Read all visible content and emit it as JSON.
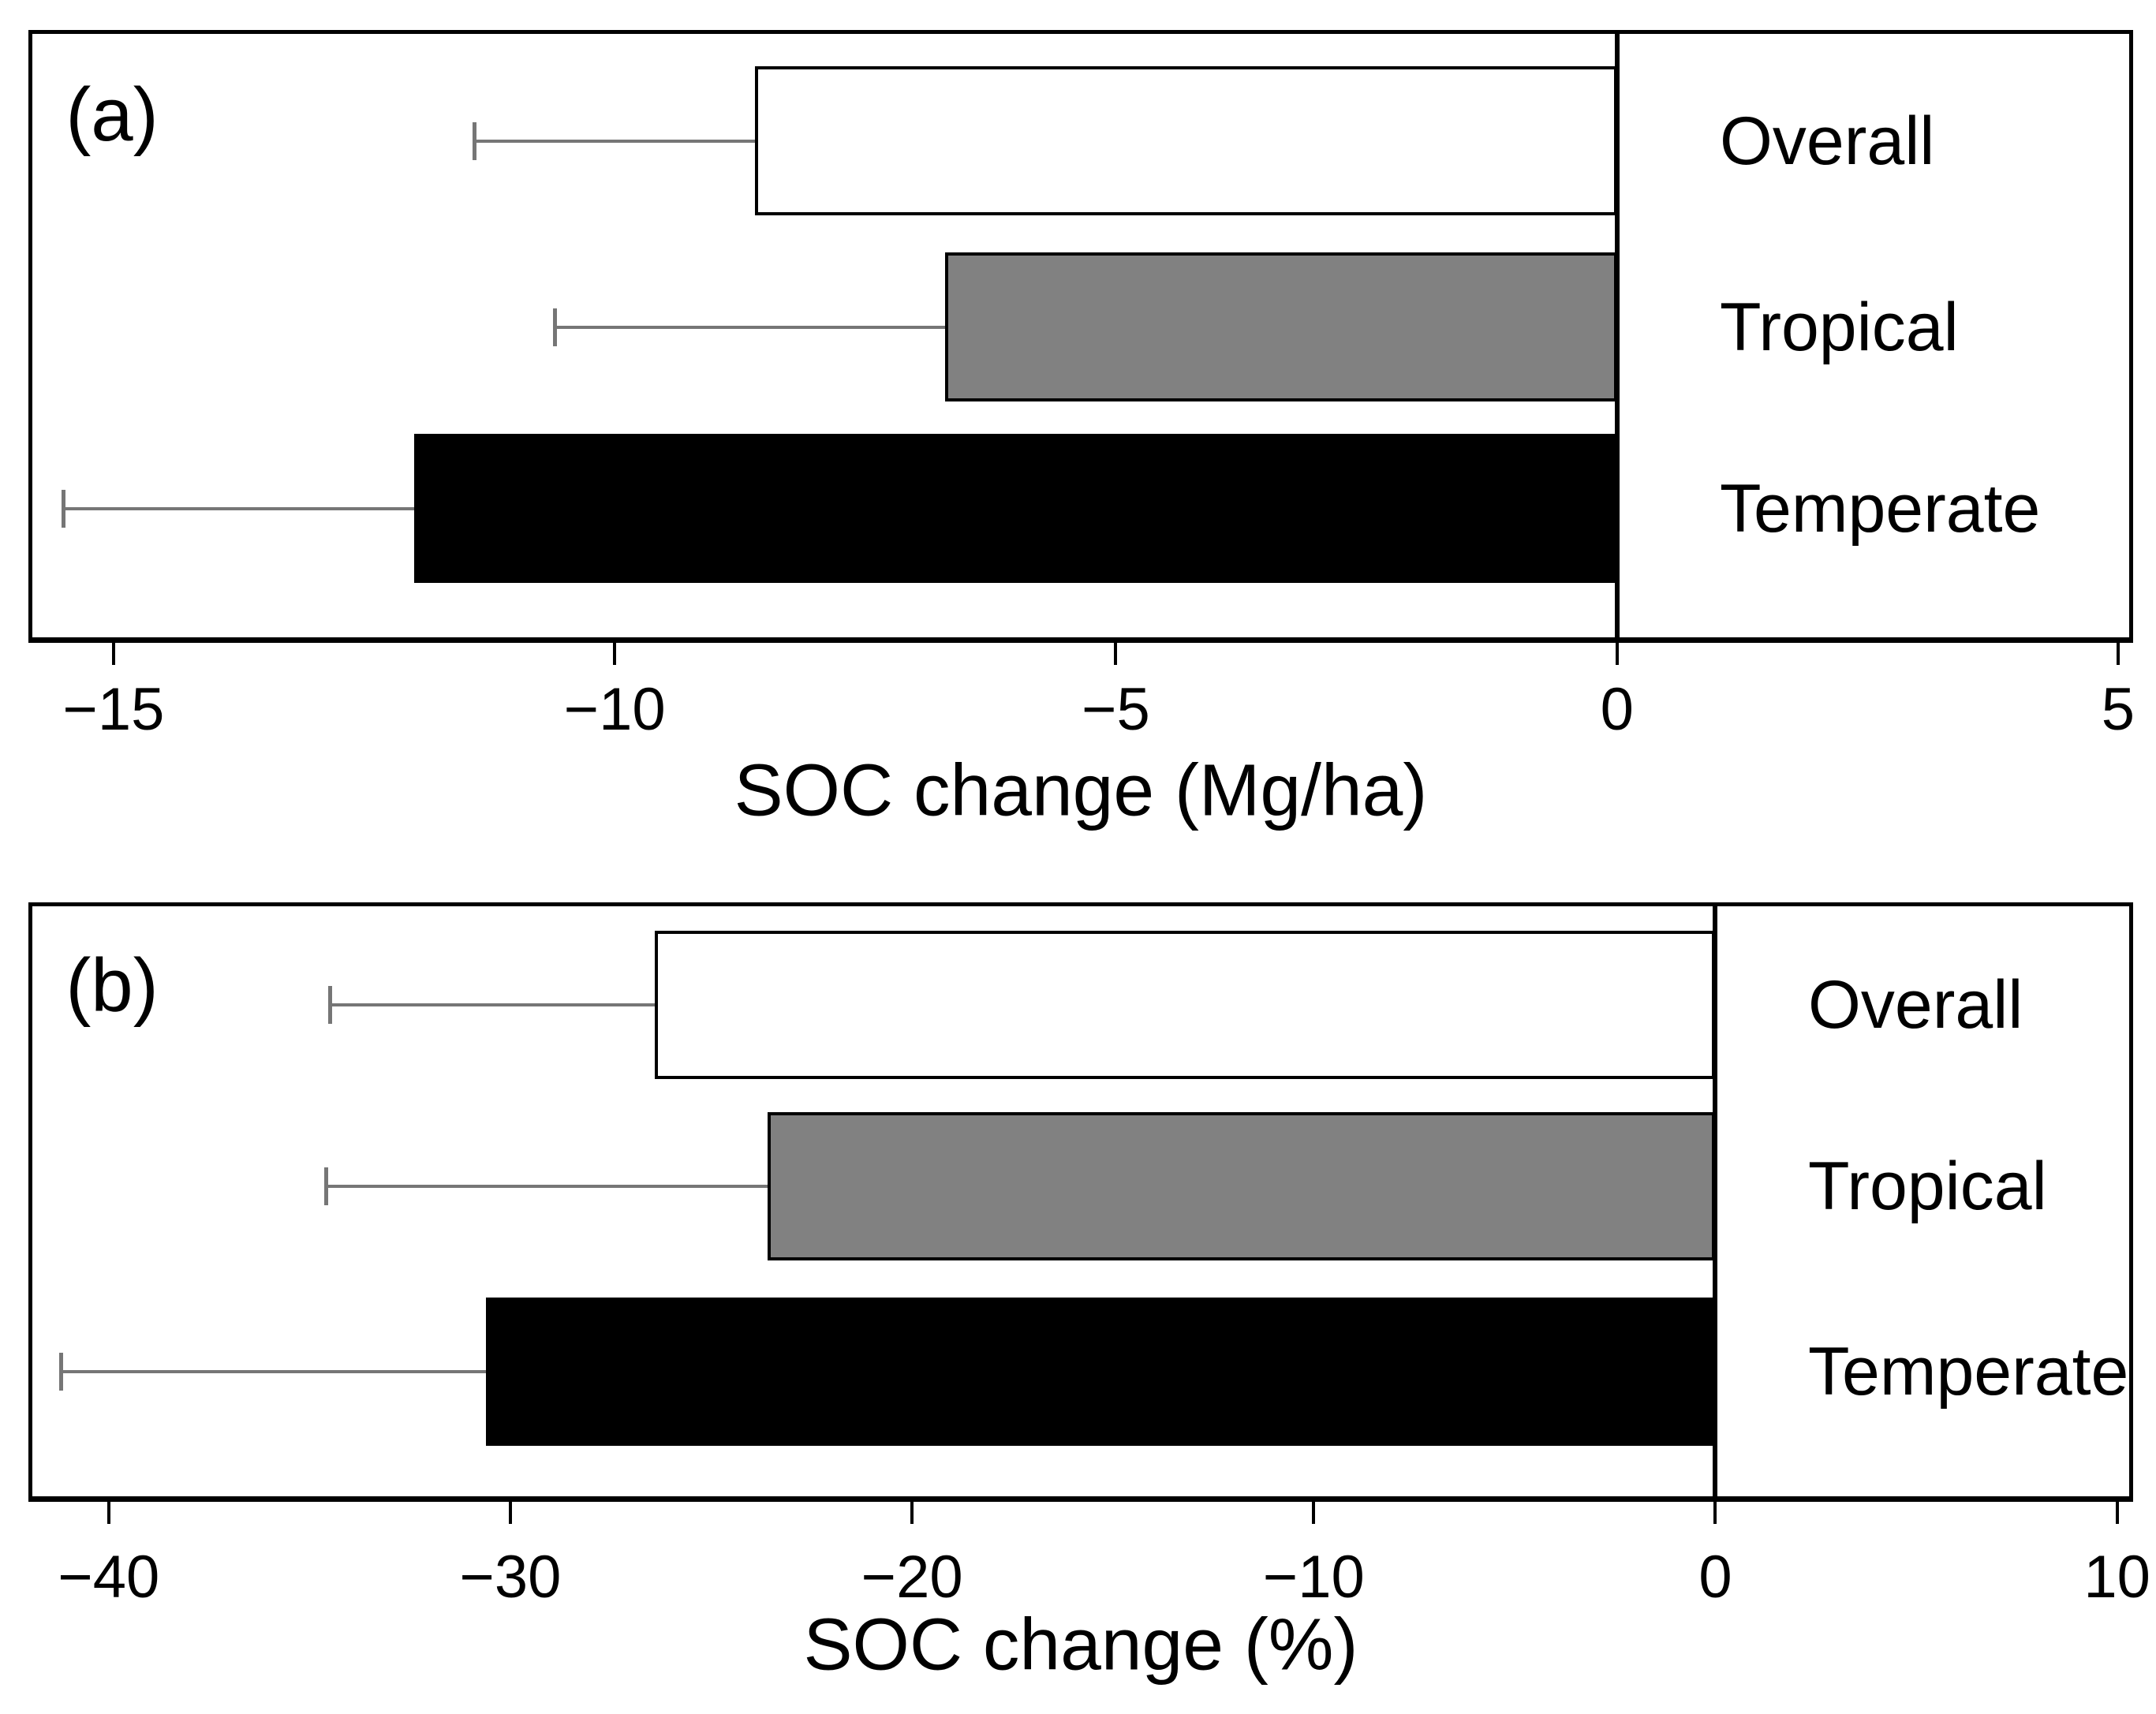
{
  "figure_title": "",
  "chart_data": [
    {
      "id": "a",
      "type": "bar",
      "orientation": "horizontal",
      "panel_label": "(a)",
      "xlabel": "SOC change (Mg/ha)",
      "categories": [
        "Overall",
        "Tropical",
        "Temperate"
      ],
      "values": [
        -8.6,
        -6.7,
        -12.0
      ],
      "error_low": [
        -11.4,
        -10.6,
        -15.5
      ],
      "error_bar_style": "one-sided whisker from bar end to lower CI with end cap",
      "bars_extend_from": 0,
      "bar_colors": [
        "#ffffff",
        "#818181",
        "#000000"
      ],
      "bar_border_color": "#000000",
      "error_color": "#767676",
      "xticks": [
        -15,
        -10,
        -5,
        0,
        5
      ],
      "xtick_labels": [
        "−15",
        "−10",
        "−5",
        "0",
        "5"
      ],
      "xlim": [
        -15.85,
        5.15
      ],
      "zero_reference_line": true,
      "grid": false,
      "legend": "none"
    },
    {
      "id": "b",
      "type": "bar",
      "orientation": "horizontal",
      "panel_label": "(b)",
      "xlabel": "SOC change (%)",
      "categories": [
        "Overall",
        "Tropical",
        "Temperate"
      ],
      "values": [
        -26.4,
        -23.6,
        -30.6
      ],
      "error_low": [
        -34.5,
        -34.6,
        -41.2
      ],
      "error_bar_style": "one-sided whisker from bar end to lower CI with end cap",
      "bars_extend_from": 0,
      "bar_colors": [
        "#ffffff",
        "#818181",
        "#000000"
      ],
      "bar_border_color": "#000000",
      "error_color": "#767676",
      "xticks": [
        -40,
        -30,
        -20,
        -10,
        0,
        10
      ],
      "xtick_labels": [
        "−40",
        "−30",
        "−20",
        "−10",
        "0",
        "10"
      ],
      "xlim": [
        -42.0,
        10.4
      ],
      "zero_reference_line": true,
      "grid": false,
      "legend": "none"
    }
  ]
}
